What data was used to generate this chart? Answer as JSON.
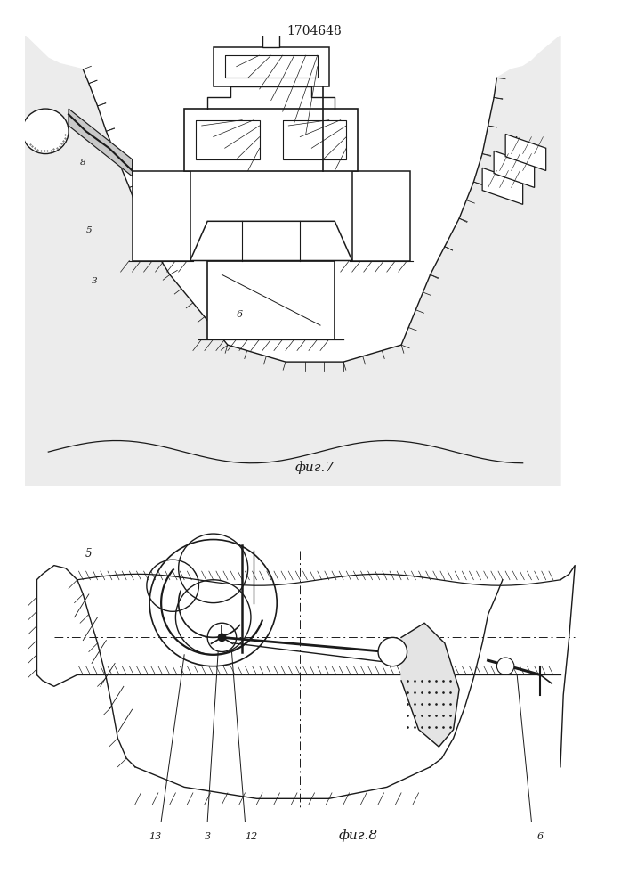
{
  "title": "1704648",
  "fig1_label": "фиг.7",
  "fig2_label": "фиг.8",
  "bg_color": "#ffffff",
  "lc": "#1a1a1a"
}
